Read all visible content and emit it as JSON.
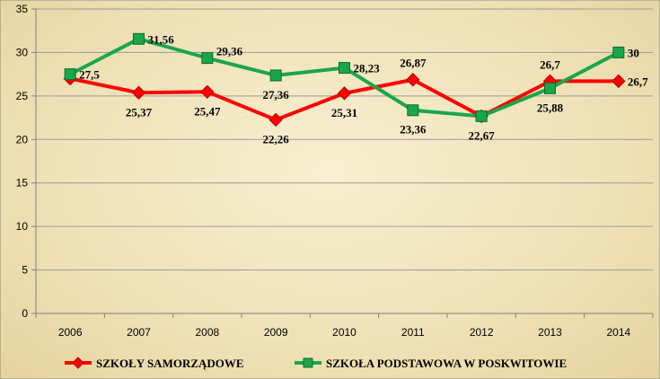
{
  "chart_data": {
    "type": "line",
    "title": "",
    "xlabel": "",
    "ylabel": "",
    "categories": [
      "2006",
      "2007",
      "2008",
      "2009",
      "2010",
      "2011",
      "2012",
      "2013",
      "2014"
    ],
    "ylim": [
      0,
      35
    ],
    "yticks": [
      0,
      5,
      10,
      15,
      20,
      25,
      30,
      35
    ],
    "grid": true,
    "legend_position": "bottom",
    "series": [
      {
        "name": "SZKOŁY SAMORZĄDOWE",
        "values": [
          27.0,
          25.37,
          25.47,
          22.26,
          25.31,
          26.87,
          22.67,
          26.7,
          26.7
        ],
        "labels": [
          "",
          "25,37",
          "25,47",
          "22,26",
          "25,31",
          "26,87",
          "22,67",
          "26,7",
          "26,7"
        ],
        "color": "#ff0000",
        "marker": "diamond"
      },
      {
        "name": "SZKOŁA PODSTAWOWA W POSKWITOWIE",
        "values": [
          27.5,
          31.56,
          29.36,
          27.36,
          28.23,
          23.36,
          22.67,
          25.88,
          30
        ],
        "labels": [
          "27,5",
          "31,56",
          "29,36",
          "27,36",
          "28,23",
          "23,36",
          "",
          "25,88",
          "30"
        ],
        "color": "#1aa64a",
        "marker": "square"
      }
    ]
  }
}
